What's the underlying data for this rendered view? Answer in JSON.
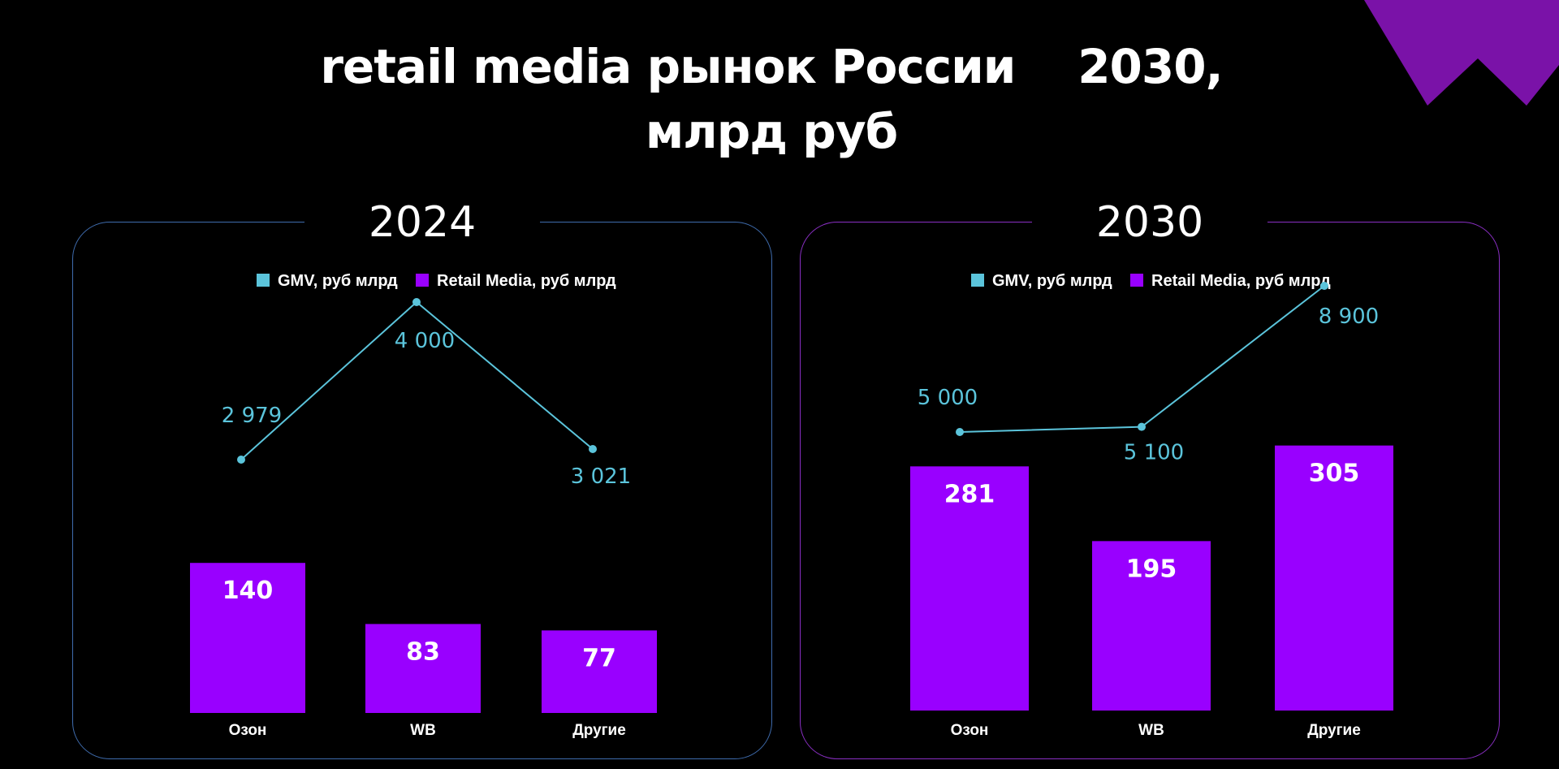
{
  "title": {
    "line1": "retail media рынок России    2030,",
    "line2": "млрд руб"
  },
  "colors": {
    "gmv": "#5bc4db",
    "retail_media": "#9900ff",
    "background": "#000000"
  },
  "chart_data": [
    {
      "type": "bar",
      "title": "2024",
      "categories": [
        "Озон",
        "WB",
        "Другие"
      ],
      "legend": [
        "GMV, руб млрд",
        "Retail Media, руб млрд"
      ],
      "series": [
        {
          "name": "Retail Media, руб млрд",
          "type": "bar",
          "values": [
            140,
            83,
            77
          ],
          "labels": [
            "140",
            "83",
            "77"
          ]
        },
        {
          "name": "GMV, руб млрд",
          "type": "line",
          "values": [
            2979,
            4000,
            3021
          ],
          "labels": [
            "2 979",
            "4 000",
            "3 021"
          ]
        }
      ]
    },
    {
      "type": "bar",
      "title": "2030",
      "categories": [
        "Озон",
        "WB",
        "Другие"
      ],
      "legend": [
        "GMV, руб млрд",
        "Retail Media, руб млрд"
      ],
      "series": [
        {
          "name": "Retail Media, руб млрд",
          "type": "bar",
          "values": [
            281,
            195,
            305
          ],
          "labels": [
            "281",
            "195",
            "305"
          ]
        },
        {
          "name": "GMV, руб млрд",
          "type": "line",
          "values": [
            5000,
            5100,
            8900
          ],
          "labels": [
            "5 000",
            "5 100",
            "8 900"
          ]
        }
      ]
    }
  ]
}
